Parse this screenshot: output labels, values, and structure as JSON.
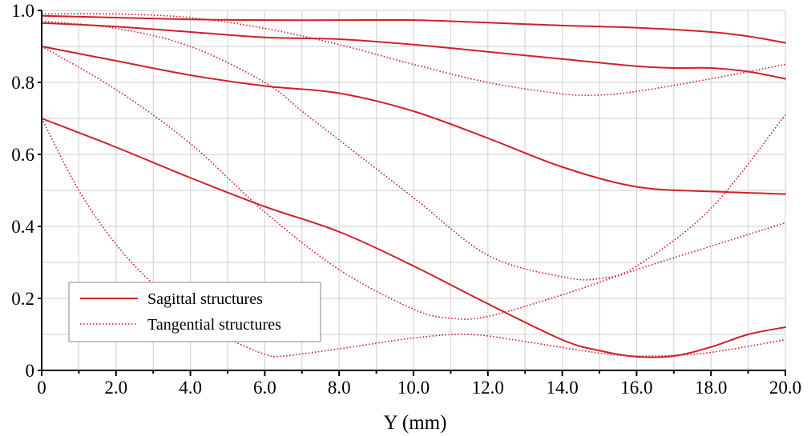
{
  "chart_data": {
    "type": "line",
    "title": "",
    "xlabel": "Y (mm)",
    "ylabel": "",
    "xlim": [
      0,
      20
    ],
    "ylim": [
      0,
      1.0
    ],
    "grid": true,
    "legend_position": "bottom-left",
    "x_ticks": [
      "0",
      "2.0",
      "4.0",
      "6.0",
      "8.0",
      "10.0",
      "12.0",
      "14.0",
      "16.0",
      "18.0",
      "20.0"
    ],
    "y_ticks": [
      "0",
      "0.2",
      "0.4",
      "0.6",
      "0.8",
      "1.0"
    ],
    "colors": {
      "line": "#d0202a",
      "grid": "#d6d6d6",
      "axis": "#000000"
    },
    "legend": [
      {
        "label": "Sagittal structures",
        "style": "solid"
      },
      {
        "label": "Tangential structures",
        "style": "dotted"
      }
    ],
    "series": [
      {
        "name": "Sagittal 1",
        "style": "solid",
        "x": [
          0,
          2,
          4,
          6,
          8,
          10,
          12,
          14,
          16,
          18,
          19,
          20
        ],
        "y": [
          0.985,
          0.98,
          0.975,
          0.973,
          0.973,
          0.973,
          0.966,
          0.958,
          0.952,
          0.94,
          0.928,
          0.91
        ]
      },
      {
        "name": "Sagittal 2",
        "style": "solid",
        "x": [
          0,
          2,
          4,
          6,
          8,
          10,
          12,
          14,
          16,
          17,
          18,
          19,
          20
        ],
        "y": [
          0.965,
          0.955,
          0.94,
          0.925,
          0.92,
          0.905,
          0.885,
          0.865,
          0.845,
          0.84,
          0.84,
          0.83,
          0.81
        ]
      },
      {
        "name": "Sagittal 3",
        "style": "solid",
        "x": [
          0,
          2,
          4,
          6,
          8,
          10,
          12,
          14,
          16,
          18,
          20
        ],
        "y": [
          0.9,
          0.86,
          0.82,
          0.79,
          0.77,
          0.72,
          0.645,
          0.565,
          0.51,
          0.497,
          0.49
        ]
      },
      {
        "name": "Sagittal 4",
        "style": "solid",
        "x": [
          0,
          2,
          4,
          6,
          8,
          10,
          12,
          14,
          15,
          16,
          17,
          18,
          19,
          20
        ],
        "y": [
          0.7,
          0.62,
          0.535,
          0.455,
          0.385,
          0.29,
          0.185,
          0.085,
          0.055,
          0.038,
          0.04,
          0.065,
          0.1,
          0.12
        ]
      },
      {
        "name": "Tangential 1",
        "style": "dotted",
        "x": [
          0,
          2,
          4,
          6,
          8,
          10,
          12,
          14,
          15,
          16,
          18,
          20
        ],
        "y": [
          0.99,
          0.99,
          0.98,
          0.95,
          0.905,
          0.85,
          0.8,
          0.768,
          0.765,
          0.775,
          0.81,
          0.85
        ]
      },
      {
        "name": "Tangential 2",
        "style": "dotted",
        "x": [
          0,
          2,
          4,
          6,
          7,
          8,
          10,
          12,
          14,
          15,
          16,
          18,
          20
        ],
        "y": [
          0.97,
          0.95,
          0.9,
          0.8,
          0.72,
          0.64,
          0.48,
          0.32,
          0.26,
          0.255,
          0.29,
          0.45,
          0.71
        ]
      },
      {
        "name": "Tangential 3",
        "style": "dotted",
        "x": [
          0,
          2,
          4,
          6,
          8,
          10,
          11,
          12,
          14,
          16,
          18,
          20
        ],
        "y": [
          0.9,
          0.78,
          0.63,
          0.44,
          0.28,
          0.17,
          0.145,
          0.15,
          0.21,
          0.28,
          0.345,
          0.41
        ]
      },
      {
        "name": "Tangential 4",
        "style": "dotted",
        "x": [
          0,
          1,
          2,
          3,
          4,
          5,
          6,
          6.5,
          8,
          10,
          11.5,
          13,
          15,
          16,
          17,
          18,
          20
        ],
        "y": [
          0.7,
          0.5,
          0.35,
          0.24,
          0.16,
          0.09,
          0.045,
          0.04,
          0.06,
          0.09,
          0.1,
          0.08,
          0.048,
          0.04,
          0.042,
          0.05,
          0.085
        ]
      }
    ]
  }
}
